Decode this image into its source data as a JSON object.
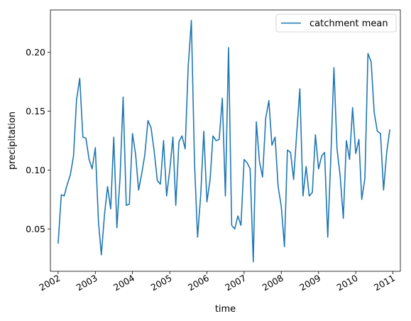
{
  "chart_data": {
    "type": "line",
    "title": "",
    "xlabel": "time",
    "ylabel": "precipitation",
    "x_ticks": [
      "2002",
      "2003",
      "2004",
      "2005",
      "2006",
      "2007",
      "2008",
      "2009",
      "2010",
      "2011"
    ],
    "y_ticks": [
      "0.05",
      "0.10",
      "0.15",
      "0.20"
    ],
    "xlim": [
      "2001-10-17",
      "2011-03-15"
    ],
    "ylim": [
      0.014,
      0.236
    ],
    "grid": false,
    "legend_position": "top-right",
    "series": [
      {
        "name": "catchment mean",
        "color": "#1f77b4",
        "x": [
          "2002-01-01",
          "2002-02-01",
          "2002-03-01",
          "2002-04-01",
          "2002-05-01",
          "2002-06-01",
          "2002-07-01",
          "2002-08-01",
          "2002-09-01",
          "2002-10-01",
          "2002-11-01",
          "2002-12-01",
          "2003-01-01",
          "2003-02-01",
          "2003-03-01",
          "2003-04-01",
          "2003-05-01",
          "2003-06-01",
          "2003-07-01",
          "2003-08-01",
          "2003-09-01",
          "2003-10-01",
          "2003-11-01",
          "2003-12-01",
          "2004-01-01",
          "2004-02-01",
          "2004-03-01",
          "2004-04-01",
          "2004-05-01",
          "2004-06-01",
          "2004-07-01",
          "2004-08-01",
          "2004-09-01",
          "2004-10-01",
          "2004-11-01",
          "2004-12-01",
          "2005-01-01",
          "2005-02-01",
          "2005-03-01",
          "2005-04-01",
          "2005-05-01",
          "2005-06-01",
          "2005-07-01",
          "2005-08-01",
          "2005-09-01",
          "2005-10-01",
          "2005-11-01",
          "2005-12-01",
          "2006-01-01",
          "2006-02-01",
          "2006-03-01",
          "2006-04-01",
          "2006-05-01",
          "2006-06-01",
          "2006-07-01",
          "2006-08-01",
          "2006-09-01",
          "2006-10-01",
          "2006-11-01",
          "2006-12-01",
          "2007-01-01",
          "2007-02-01",
          "2007-03-01",
          "2007-04-01",
          "2007-05-01",
          "2007-06-01",
          "2007-07-01",
          "2007-08-01",
          "2007-09-01",
          "2007-10-01",
          "2007-11-01",
          "2007-12-01",
          "2008-01-01",
          "2008-02-01",
          "2008-03-01",
          "2008-04-01",
          "2008-05-01",
          "2008-06-01",
          "2008-07-01",
          "2008-08-01",
          "2008-09-01",
          "2008-10-01",
          "2008-11-01",
          "2008-12-01",
          "2009-01-01",
          "2009-02-01",
          "2009-03-01",
          "2009-04-01",
          "2009-05-01",
          "2009-06-01",
          "2009-07-01",
          "2009-08-01",
          "2009-09-01",
          "2009-10-01",
          "2009-11-01",
          "2009-12-01",
          "2010-01-01",
          "2010-02-01",
          "2010-03-01",
          "2010-04-01",
          "2010-05-01",
          "2010-06-01",
          "2010-07-01",
          "2010-08-01",
          "2010-09-01",
          "2010-10-01",
          "2010-11-01",
          "2010-12-01"
        ],
        "values": [
          0.038,
          0.079,
          0.078,
          0.088,
          0.096,
          0.112,
          0.16,
          0.178,
          0.128,
          0.127,
          0.109,
          0.101,
          0.119,
          0.056,
          0.028,
          0.062,
          0.086,
          0.067,
          0.128,
          0.051,
          0.094,
          0.162,
          0.07,
          0.071,
          0.131,
          0.113,
          0.083,
          0.097,
          0.113,
          0.142,
          0.136,
          0.116,
          0.091,
          0.088,
          0.125,
          0.078,
          0.1,
          0.128,
          0.07,
          0.124,
          0.129,
          0.118,
          0.188,
          0.227,
          0.106,
          0.043,
          0.079,
          0.133,
          0.073,
          0.092,
          0.129,
          0.125,
          0.126,
          0.161,
          0.078,
          0.204,
          0.053,
          0.05,
          0.061,
          0.053,
          0.109,
          0.106,
          0.101,
          0.022,
          0.141,
          0.107,
          0.094,
          0.144,
          0.159,
          0.121,
          0.128,
          0.086,
          0.069,
          0.035,
          0.117,
          0.115,
          0.092,
          0.132,
          0.169,
          0.078,
          0.103,
          0.078,
          0.081,
          0.13,
          0.101,
          0.112,
          0.115,
          0.043,
          0.11,
          0.187,
          0.118,
          0.095,
          0.059,
          0.125,
          0.109,
          0.153,
          0.114,
          0.126,
          0.075,
          0.093,
          0.199,
          0.192,
          0.149,
          0.133,
          0.131,
          0.083,
          0.115,
          0.134
        ]
      }
    ]
  }
}
